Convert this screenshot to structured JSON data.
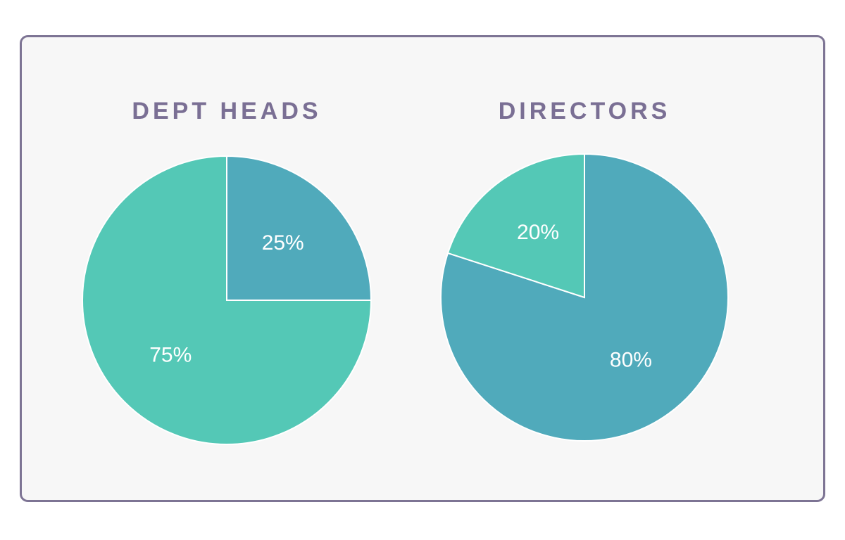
{
  "chart_data": [
    {
      "type": "pie",
      "title": "DEPT HEADS",
      "values": [
        25,
        75
      ],
      "value_labels": [
        "25%",
        "75%"
      ],
      "colors": [
        "#50aabb",
        "#54c8b6"
      ]
    },
    {
      "type": "pie",
      "title": "DIRECTORS",
      "values": [
        80,
        20
      ],
      "value_labels": [
        "80%",
        "20%"
      ],
      "colors": [
        "#50aabb",
        "#54c8b6"
      ]
    }
  ]
}
